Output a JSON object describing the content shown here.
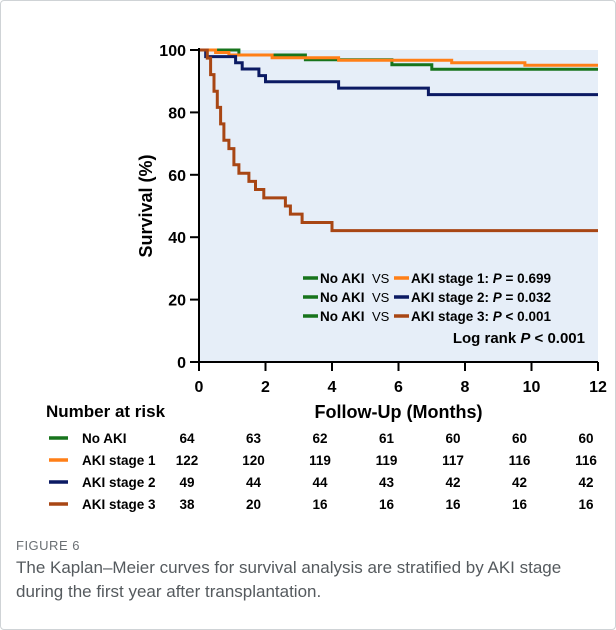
{
  "chart_data": {
    "type": "line",
    "subtype": "kaplan-meier",
    "xlabel": "Follow-Up (Months)",
    "ylabel": "Survival (%)",
    "xlim": [
      0,
      12
    ],
    "ylim": [
      0,
      100
    ],
    "x_ticks": [
      "0",
      "2",
      "4",
      "6",
      "8",
      "10",
      "12"
    ],
    "y_ticks": [
      "0",
      "20",
      "40",
      "60",
      "80",
      "100"
    ],
    "grid": false,
    "plot_background": "#e6eef8",
    "legend_position": "bottom-right",
    "series": [
      {
        "name": "No AKI",
        "color": "#17741c",
        "steps": [
          [
            0,
            100
          ],
          [
            1.2,
            98.4
          ],
          [
            3.2,
            96.9
          ],
          [
            5.8,
            95.3
          ],
          [
            7.0,
            93.8
          ],
          [
            12,
            93.8
          ]
        ]
      },
      {
        "name": "AKI stage 1",
        "color": "#ff7f17",
        "steps": [
          [
            0,
            100
          ],
          [
            0.5,
            99.2
          ],
          [
            0.9,
            98.4
          ],
          [
            2.2,
            97.5
          ],
          [
            4.2,
            96.7
          ],
          [
            7.6,
            95.9
          ],
          [
            9.8,
            95.1
          ],
          [
            12,
            95.1
          ]
        ]
      },
      {
        "name": "AKI stage 2",
        "color": "#0b1a63",
        "steps": [
          [
            0,
            100
          ],
          [
            0.2,
            97.9
          ],
          [
            1.1,
            95.9
          ],
          [
            1.3,
            93.9
          ],
          [
            1.8,
            91.8
          ],
          [
            2.0,
            89.8
          ],
          [
            4.2,
            87.8
          ],
          [
            6.9,
            85.7
          ],
          [
            12,
            85.7
          ]
        ]
      },
      {
        "name": "AKI stage 3",
        "color": "#a84614",
        "steps": [
          [
            0,
            100
          ],
          [
            0.25,
            97.4
          ],
          [
            0.35,
            92.1
          ],
          [
            0.45,
            86.8
          ],
          [
            0.55,
            81.6
          ],
          [
            0.65,
            76.3
          ],
          [
            0.75,
            71.1
          ],
          [
            0.9,
            68.4
          ],
          [
            1.05,
            63.2
          ],
          [
            1.2,
            60.5
          ],
          [
            1.5,
            57.9
          ],
          [
            1.7,
            55.3
          ],
          [
            1.95,
            52.6
          ],
          [
            2.6,
            50.0
          ],
          [
            2.75,
            47.4
          ],
          [
            3.1,
            44.7
          ],
          [
            4.0,
            42.1
          ],
          [
            12,
            42.1
          ]
        ]
      }
    ],
    "legend": [
      {
        "ref": "No AKI",
        "sep": "VS",
        "name": "AKI stage 1",
        "ref_color": "#17741c",
        "color": "#ff7f17",
        "p_label": "P",
        "p_value": " = 0.699"
      },
      {
        "ref": "No AKI",
        "sep": "VS",
        "name": "AKI stage 2",
        "ref_color": "#17741c",
        "color": "#0b1a63",
        "p_label": "P",
        "p_value": " = 0.032"
      },
      {
        "ref": "No AKI",
        "sep": "VS",
        "name": "AKI stage 3",
        "ref_color": "#17741c",
        "color": "#a84614",
        "p_label": "P",
        "p_value": " < 0.001"
      }
    ],
    "log_rank": {
      "prefix": "Log rank ",
      "p_label": "P",
      "value": " < 0.001"
    },
    "risk_table": {
      "title": "Number at risk",
      "rows": [
        {
          "name": "No AKI",
          "color": "#17741c",
          "values": [
            64,
            63,
            62,
            61,
            60,
            60,
            60
          ]
        },
        {
          "name": "AKI stage 1",
          "color": "#ff7f17",
          "values": [
            122,
            120,
            119,
            119,
            117,
            116,
            116
          ]
        },
        {
          "name": "AKI stage 2",
          "color": "#0b1a63",
          "values": [
            49,
            44,
            44,
            43,
            42,
            42,
            42
          ]
        },
        {
          "name": "AKI stage 3",
          "color": "#a84614",
          "values": [
            38,
            20,
            16,
            16,
            16,
            16,
            16
          ]
        }
      ]
    }
  },
  "caption": {
    "label": "FIGURE 6",
    "text": "The Kaplan–Meier curves for survival analysis are stratified by AKI stage during the first year after transplantation."
  }
}
